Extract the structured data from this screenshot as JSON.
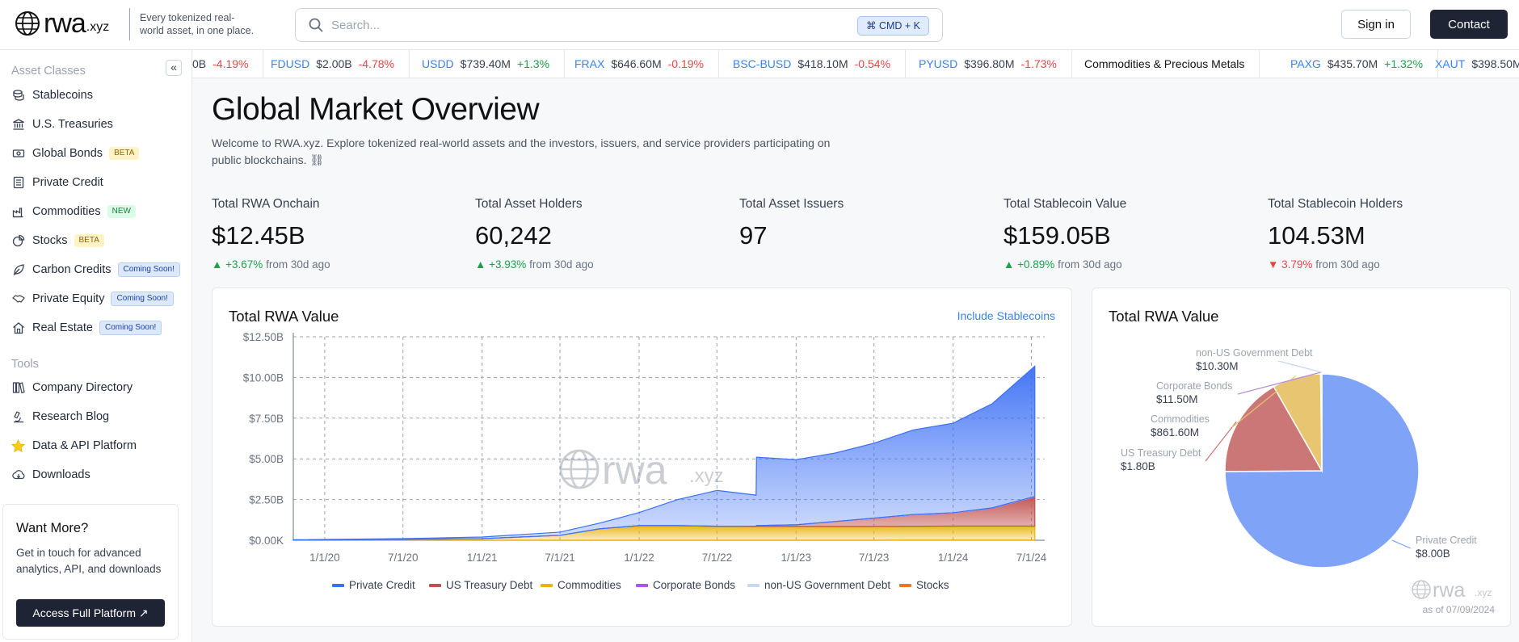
{
  "header": {
    "logo_text": "rwa",
    "logo_suffix": ".xyz",
    "tagline": "Every tokenized real-world asset, in one place.",
    "search_placeholder": "Search...",
    "search_shortcut": "⌘ CMD + K",
    "signin_label": "Sign in",
    "contact_label": "Contact"
  },
  "sidebar": {
    "asset_classes_label": "Asset Classes",
    "collapse_glyph": "«",
    "items": [
      {
        "label": "Stablecoins",
        "badge": ""
      },
      {
        "label": "U.S. Treasuries",
        "badge": ""
      },
      {
        "label": "Global Bonds",
        "badge": "BETA"
      },
      {
        "label": "Private Credit",
        "badge": ""
      },
      {
        "label": "Commodities",
        "badge": "NEW"
      },
      {
        "label": "Stocks",
        "badge": "BETA"
      },
      {
        "label": "Carbon Credits",
        "badge": "Coming Soon!"
      },
      {
        "label": "Private Equity",
        "badge": "Coming Soon!"
      },
      {
        "label": "Real Estate",
        "badge": "Coming Soon!"
      }
    ],
    "tools_label": "Tools",
    "tools": [
      {
        "label": "Company Directory"
      },
      {
        "label": "Research Blog"
      },
      {
        "label": "Data & API Platform"
      },
      {
        "label": "Downloads"
      }
    ],
    "promo": {
      "title": "Want More?",
      "text": "Get in touch for advanced analytics, API, and downloads",
      "button": "Access Full Platform ↗"
    }
  },
  "ticker": [
    {
      "symbol": "",
      "value": "0B",
      "change": "-4.19%",
      "dir": "down"
    },
    {
      "symbol": "FDUSD",
      "value": "$2.00B",
      "change": "-4.78%",
      "dir": "down"
    },
    {
      "symbol": "USDD",
      "value": "$739.40M",
      "change": "+1.3%",
      "dir": "up"
    },
    {
      "symbol": "FRAX",
      "value": "$646.60M",
      "change": "-0.19%",
      "dir": "down"
    },
    {
      "symbol": "BSC-BUSD",
      "value": "$418.10M",
      "change": "-0.54%",
      "dir": "down"
    },
    {
      "symbol": "PYUSD",
      "value": "$396.80M",
      "change": "-1.73%",
      "dir": "down"
    },
    {
      "category": "Commodities & Precious Metals"
    },
    {
      "symbol": "PAXG",
      "value": "$435.70M",
      "change": "+1.32%",
      "dir": "up"
    },
    {
      "symbol": "XAUT",
      "value": "$398.50M",
      "change": "",
      "dir": "up"
    }
  ],
  "main": {
    "title": "Global Market Overview",
    "description": "Welcome to RWA.xyz. Explore tokenized real-world assets and the investors, issuers, and service providers participating on public blockchains. ⛓",
    "stats": [
      {
        "label": "Total RWA Onchain",
        "value": "$12.45B",
        "change": "+3.67%",
        "dir": "up",
        "suffix": "from 30d ago"
      },
      {
        "label": "Total Asset Holders",
        "value": "60,242",
        "change": "+3.93%",
        "dir": "up",
        "suffix": "from 30d ago"
      },
      {
        "label": "Total Asset Issuers",
        "value": "97",
        "change": "",
        "dir": "",
        "suffix": ""
      },
      {
        "label": "Total Stablecoin Value",
        "value": "$159.05B",
        "change": "+0.89%",
        "dir": "up",
        "suffix": "from 30d ago"
      },
      {
        "label": "Total Stablecoin Holders",
        "value": "104.53M",
        "change": "3.79%",
        "dir": "down",
        "suffix": "from 30d ago"
      }
    ]
  },
  "chart_data": [
    {
      "type": "area",
      "title": "Total RWA Value",
      "toggle_label": "Include Stablecoins",
      "watermark": "rwa",
      "watermark_suffix": ".xyz",
      "xlabel": "",
      "ylabel": "",
      "y_ticks": [
        "$0.00K",
        "$2.50B",
        "$5.00B",
        "$7.50B",
        "$10.00B",
        "$12.50B"
      ],
      "ylim": [
        0,
        12.5
      ],
      "y_unit": "$B",
      "x_ticks": [
        "1/1/20",
        "7/1/20",
        "1/1/21",
        "7/1/21",
        "1/1/22",
        "7/1/22",
        "1/1/23",
        "7/1/23",
        "1/1/24",
        "7/1/24"
      ],
      "xlim": [
        "2019-10-20",
        "2024-08-01"
      ],
      "stacked": true,
      "grid": true,
      "legend_position": "bottom",
      "x": [
        "2019-10-20",
        "2020-07-01",
        "2021-01-01",
        "2021-07-01",
        "2021-10-01",
        "2022-01-01",
        "2022-04-01",
        "2022-07-01",
        "2022-09-30",
        "2022-10-01",
        "2023-01-01",
        "2023-04-01",
        "2023-07-01",
        "2023-10-01",
        "2024-01-01",
        "2024-04-01",
        "2024-07-09"
      ],
      "series": [
        {
          "name": "Stocks",
          "color": "#f97316",
          "values": [
            0,
            0,
            0,
            0,
            0,
            0,
            0,
            0,
            0,
            0,
            0,
            0,
            0,
            0.01,
            0.01,
            0.01,
            0.01
          ]
        },
        {
          "name": "Commodities",
          "color": "#eab308",
          "values": [
            0.01,
            0.05,
            0.1,
            0.3,
            0.7,
            0.9,
            0.9,
            0.85,
            0.85,
            0.85,
            0.85,
            0.85,
            0.85,
            0.85,
            0.86,
            0.86,
            0.86
          ]
        },
        {
          "name": "US Treasury Debt",
          "color": "#c0504d",
          "values": [
            0,
            0,
            0,
            0,
            0,
            0,
            0,
            0.01,
            0.02,
            0.05,
            0.1,
            0.3,
            0.5,
            0.7,
            0.8,
            1.1,
            1.8
          ]
        },
        {
          "name": "Corporate Bonds",
          "color": "#a855f7",
          "values": [
            0,
            0,
            0,
            0,
            0,
            0,
            0,
            0,
            0,
            0,
            0,
            0,
            0.01,
            0.01,
            0.01,
            0.01,
            0.01
          ]
        },
        {
          "name": "non-US Government Debt",
          "color": "#c7d8f3",
          "values": [
            0,
            0,
            0,
            0,
            0,
            0,
            0,
            0,
            0,
            0,
            0,
            0,
            0,
            0.01,
            0.01,
            0.01,
            0.01
          ]
        },
        {
          "name": "Private Credit",
          "color": "#3b6ff5",
          "values": [
            0.02,
            0.05,
            0.1,
            0.2,
            0.35,
            0.8,
            1.6,
            2.2,
            1.9,
            4.2,
            4.0,
            4.2,
            4.6,
            5.2,
            5.5,
            6.4,
            8.0
          ]
        }
      ],
      "legend": [
        {
          "name": "Private Credit",
          "color": "#3b6ff5"
        },
        {
          "name": "US Treasury Debt",
          "color": "#c0504d"
        },
        {
          "name": "Commodities",
          "color": "#eab308"
        },
        {
          "name": "Corporate Bonds",
          "color": "#a855f7"
        },
        {
          "name": "non-US Government Debt",
          "color": "#c7d8f3"
        },
        {
          "name": "Stocks",
          "color": "#f97316"
        }
      ]
    },
    {
      "type": "pie",
      "title": "Total RWA Value",
      "watermark": "rwa",
      "watermark_suffix": ".xyz",
      "as_of": "as of 07/09/2024",
      "slices": [
        {
          "name": "Private Credit",
          "display": "$8.00B",
          "value": 8.0,
          "color": "#7ea3f7"
        },
        {
          "name": "US Treasury Debt",
          "display": "$1.80B",
          "value": 1.8,
          "color": "#cc7777"
        },
        {
          "name": "Commodities",
          "display": "$861.60M",
          "value": 0.8616,
          "color": "#e8c570"
        },
        {
          "name": "Corporate Bonds",
          "display": "$11.50M",
          "value": 0.0115,
          "color": "#b48fe0"
        },
        {
          "name": "non-US Government Debt",
          "display": "$10.30M",
          "value": 0.0103,
          "color": "#c9d6ee"
        }
      ]
    }
  ]
}
